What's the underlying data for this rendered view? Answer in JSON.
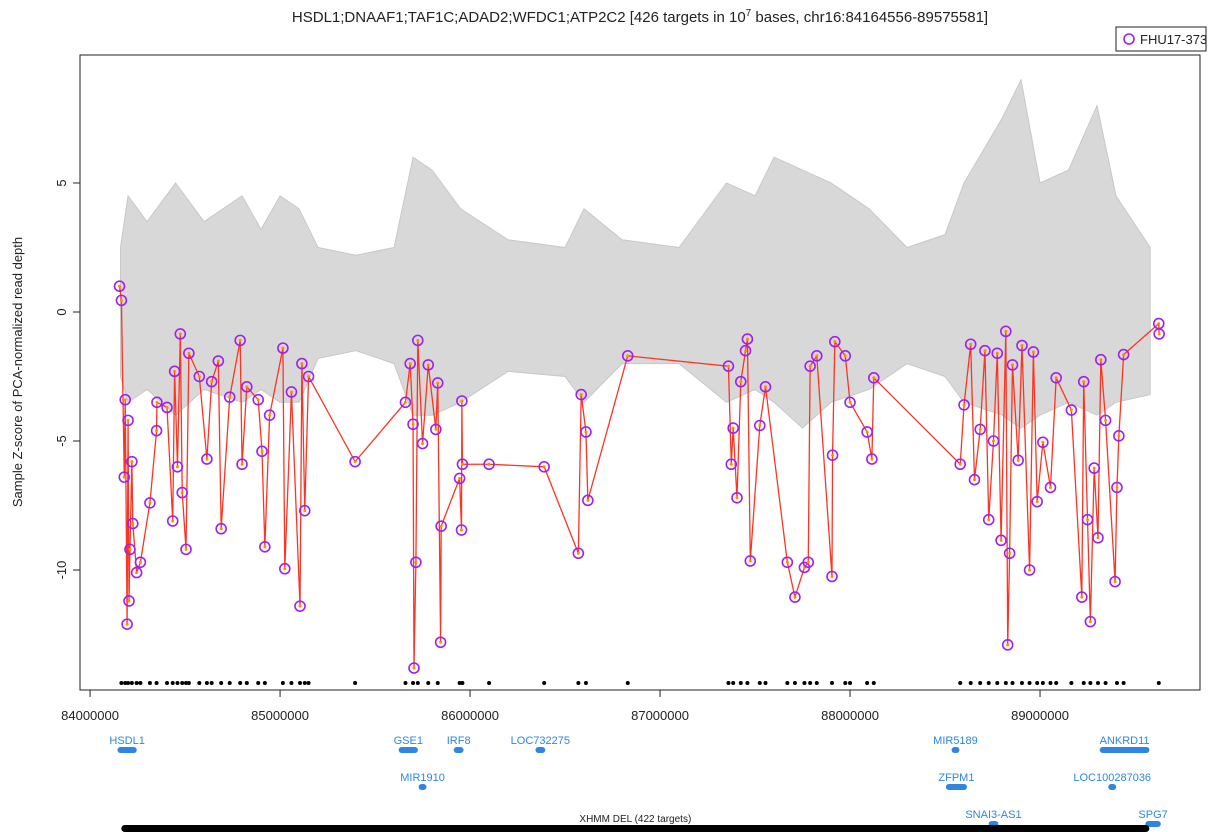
{
  "chart_data": {
    "type": "line",
    "title": "HSDL1;DNAAF1;TAF1C;ADAD2;WFDC1;ATP2C2 [426 targets in 10",
    "title_sup": "7",
    "title_end": " bases, chr16:84164556-89575581]",
    "y_label": "Sample Z-score of PCA-normalized read depth",
    "xlim": [
      83947000,
      89842000
    ],
    "ylim": [
      -14.65,
      9.96
    ],
    "xticks": [
      84000000,
      85000000,
      86000000,
      87000000,
      88000000,
      89000000
    ],
    "yticks": [
      -10,
      -5,
      0,
      5
    ],
    "legend": "top-right",
    "band": {
      "color": "#c8c8c8",
      "x": [
        84160000,
        84200000,
        84300000,
        84450000,
        84600000,
        84800000,
        84900000,
        85000000,
        85100000,
        85200000,
        85400000,
        85600000,
        85700000,
        85800000,
        85950000,
        86200000,
        86500000,
        86600000,
        86800000,
        87100000,
        87350000,
        87500000,
        87600000,
        87750000,
        87900000,
        88100000,
        88300000,
        88500000,
        88600000,
        88800000,
        88900000,
        89000000,
        89150000,
        89300000,
        89400000,
        89580000
      ],
      "upper": [
        2.5,
        4.5,
        3.5,
        5,
        3.5,
        4.5,
        3.2,
        4.5,
        4,
        2.5,
        2.2,
        2.5,
        6,
        5.5,
        4,
        2.8,
        2.5,
        4,
        2.8,
        2.5,
        5,
        4.5,
        6,
        5.5,
        5,
        4,
        2.5,
        3,
        5,
        7.5,
        9,
        5,
        5.5,
        8,
        4.5,
        2.5
      ],
      "lower": [
        -2.5,
        -3.5,
        -3,
        -4,
        -3,
        -3.5,
        -3,
        -3.5,
        -3.5,
        -1.8,
        -1.5,
        -2,
        -4,
        -4,
        -3.5,
        -2.3,
        -2.5,
        -3.5,
        -2,
        -2,
        -3.5,
        -3,
        -3.5,
        -4.5,
        -3.5,
        -3,
        -2,
        -2.5,
        -3.5,
        -4,
        -4.5,
        -4,
        -3.5,
        -4,
        -3.5,
        -3.2
      ]
    },
    "series": [
      {
        "name": "FHU17-373",
        "color": "#ff3322",
        "marker_color": "#a020f0",
        "x": [
          84155000,
          84165000,
          84180000,
          84185000,
          84195000,
          84200000,
          84205000,
          84210000,
          84220000,
          84225000,
          84245000,
          84265000,
          84315000,
          84350000,
          84352000,
          84405000,
          84435000,
          84445000,
          84460000,
          84475000,
          84485000,
          84505000,
          84520000,
          84575000,
          84615000,
          84640000,
          84675000,
          84690000,
          84735000,
          84790000,
          84800000,
          84825000,
          84885000,
          84905000,
          84920000,
          84945000,
          85015000,
          85025000,
          85060000,
          85105000,
          85115000,
          85130000,
          85150000,
          85395000,
          85660000,
          85685000,
          85700000,
          85705000,
          85715000,
          85725000,
          85750000,
          85780000,
          85820000,
          85830000,
          85845000,
          85848000,
          85945000,
          85955000,
          85957000,
          85960000,
          86100000,
          86390000,
          86570000,
          86585000,
          86610000,
          86620000,
          86830000,
          87360000,
          87375000,
          87385000,
          87405000,
          87425000,
          87450000,
          87460000,
          87475000,
          87525000,
          87555000,
          87670000,
          87710000,
          87760000,
          87780000,
          87790000,
          87825000,
          87905000,
          87908000,
          87920000,
          87975000,
          88000000,
          88090000,
          88115000,
          88125000,
          88580000,
          88600000,
          88635000,
          88655000,
          88685000,
          88710000,
          88730000,
          88755000,
          88775000,
          88795000,
          88820000,
          88830000,
          88840000,
          88855000,
          88885000,
          88905000,
          88945000,
          88965000,
          88985000,
          89015000,
          89055000,
          89085000,
          89165000,
          89220000,
          89230000,
          89250000,
          89265000,
          89285000,
          89305000,
          89320000,
          89345000,
          89395000,
          89405000,
          89415000,
          89440000,
          89625000,
          89627000
        ],
        "values": [
          1.0,
          0.45,
          -6.4,
          -3.4,
          -12.1,
          -4.2,
          -11.2,
          -9.2,
          -5.8,
          -8.2,
          -10.1,
          -9.7,
          -7.4,
          -4.6,
          -3.5,
          -3.7,
          -8.1,
          -2.3,
          -6.0,
          -0.85,
          -7.0,
          -9.2,
          -1.6,
          -2.5,
          -5.7,
          -2.7,
          -1.9,
          -8.4,
          -3.3,
          -1.1,
          -5.9,
          -2.9,
          -3.4,
          -5.4,
          -9.1,
          -4.0,
          -1.4,
          -9.95,
          -3.1,
          -11.4,
          -2.0,
          -7.7,
          -2.5,
          -5.8,
          -3.5,
          -2.0,
          -4.35,
          -13.8,
          -9.7,
          -1.1,
          -5.1,
          -2.05,
          -4.55,
          -2.75,
          -12.8,
          -8.3,
          -6.45,
          -8.45,
          -3.45,
          -5.9,
          -5.9,
          -6.0,
          -9.35,
          -3.2,
          -4.65,
          -7.3,
          -1.7,
          -2.1,
          -5.9,
          -4.5,
          -7.2,
          -2.7,
          -1.5,
          -1.05,
          -9.65,
          -4.4,
          -2.9,
          -9.7,
          -11.05,
          -9.9,
          -9.7,
          -2.1,
          -1.7,
          -10.25,
          -5.55,
          -1.15,
          -1.7,
          -3.5,
          -4.65,
          -5.7,
          -2.55,
          -5.9,
          -3.6,
          -1.25,
          -6.5,
          -4.55,
          -1.5,
          -8.05,
          -5.0,
          -1.6,
          -8.85,
          -0.75,
          -12.9,
          -9.35,
          -2.05,
          -5.75,
          -1.3,
          -10.0,
          -1.55,
          -7.35,
          -5.05,
          -6.8,
          -2.55,
          -3.8,
          -11.05,
          -2.7,
          -8.05,
          -12.0,
          -6.05,
          -8.75,
          -1.85,
          -4.2,
          -10.45,
          -6.8,
          -4.8,
          -1.65,
          -0.45,
          -0.85
        ]
      }
    ],
    "targets": [
      84165000,
      84185000,
      84200000,
      84220000,
      84245000,
      84265000,
      84315000,
      84350000,
      84405000,
      84435000,
      84460000,
      84485000,
      84505000,
      84520000,
      84575000,
      84615000,
      84640000,
      84690000,
      84735000,
      84790000,
      84825000,
      84885000,
      84920000,
      85015000,
      85060000,
      85105000,
      85130000,
      85150000,
      85395000,
      85660000,
      85700000,
      85725000,
      85780000,
      85830000,
      85945000,
      85960000,
      86100000,
      86390000,
      86570000,
      86610000,
      86830000,
      87360000,
      87385000,
      87425000,
      87460000,
      87525000,
      87555000,
      87670000,
      87710000,
      87760000,
      87790000,
      87825000,
      87905000,
      87975000,
      88000000,
      88090000,
      88125000,
      88580000,
      88635000,
      88685000,
      88730000,
      88775000,
      88820000,
      88855000,
      88905000,
      88945000,
      88985000,
      89015000,
      89055000,
      89085000,
      89165000,
      89230000,
      89265000,
      89305000,
      89345000,
      89405000,
      89440000,
      89625000
    ],
    "gene_color": "#2f86e0",
    "genes": [
      {
        "name": "HSDL1",
        "start": 84160000,
        "end": 84230000
      },
      {
        "name": "GSE1",
        "start": 85640000,
        "end": 85710000
      },
      {
        "name": "MIR1910",
        "start": 85745000,
        "end": 85755000
      },
      {
        "name": "IRF8",
        "start": 85930000,
        "end": 85950000
      },
      {
        "name": "LOC732275",
        "start": 86360000,
        "end": 86380000
      },
      {
        "name": "MIR5189",
        "start": 88550000,
        "end": 88560000
      },
      {
        "name": "ZFPM1",
        "start": 88520000,
        "end": 88600000
      },
      {
        "name": "SNAI3-AS1",
        "start": 88745000,
        "end": 88765000
      },
      {
        "name": "ANKRD11",
        "start": 89330000,
        "end": 89560000
      },
      {
        "name": "LOC100287036",
        "start": 89375000,
        "end": 89385000
      },
      {
        "name": "SPG7",
        "start": 89570000,
        "end": 89620000
      }
    ],
    "cnv": {
      "label": "XHMM DEL (422 targets)",
      "start": 84164556,
      "end": 89575581
    }
  }
}
